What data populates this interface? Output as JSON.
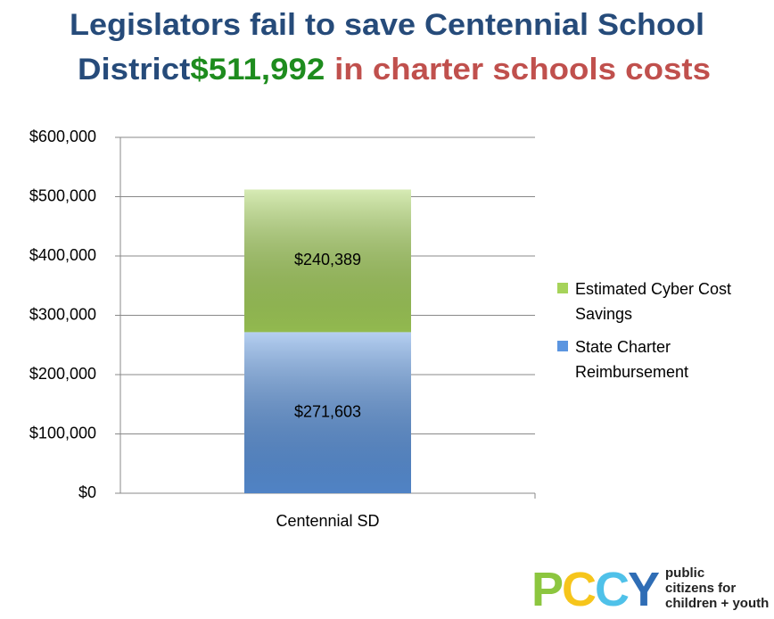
{
  "chart_data": {
    "type": "stacked_bar",
    "title_parts": [
      {
        "text": "Legislators fail to save Centennial School",
        "color": "#264b7a"
      },
      {
        "text": "District",
        "color": "#264b7a"
      },
      {
        "text": "$511,992",
        "color": "#1e8c1e"
      },
      {
        "text": "in charter schools costs",
        "color": "#c0504d"
      }
    ],
    "categories": [
      "Centennial SD"
    ],
    "series": [
      {
        "name": "State Charter Reimbursement",
        "color": "#5b95e0",
        "values": [
          271603
        ],
        "value_labels": [
          "$271,603"
        ]
      },
      {
        "name": "Estimated Cyber Cost Savings",
        "color": "#a6d35a",
        "values": [
          240389
        ],
        "value_labels": [
          "$240,389"
        ]
      }
    ],
    "ylim": [
      0,
      600000
    ],
    "yticks": [
      {
        "value": 0,
        "label": "$0"
      },
      {
        "value": 100000,
        "label": "$100,000"
      },
      {
        "value": 200000,
        "label": "$200,000"
      },
      {
        "value": 300000,
        "label": "$300,000"
      },
      {
        "value": 400000,
        "label": "$400,000"
      },
      {
        "value": 500000,
        "label": "$500,000"
      },
      {
        "value": 600000,
        "label": "$600,000"
      }
    ],
    "grid": true,
    "legend": "right"
  },
  "logo": {
    "letters": [
      {
        "text": "P",
        "color": "#8cc63f"
      },
      {
        "text": "C",
        "color": "#f6c51b"
      },
      {
        "text": "C",
        "color": "#4fc1e9"
      },
      {
        "text": "Y",
        "color": "#2f6db5"
      }
    ],
    "lines": [
      "public",
      "citizens for",
      "children + youth"
    ]
  }
}
